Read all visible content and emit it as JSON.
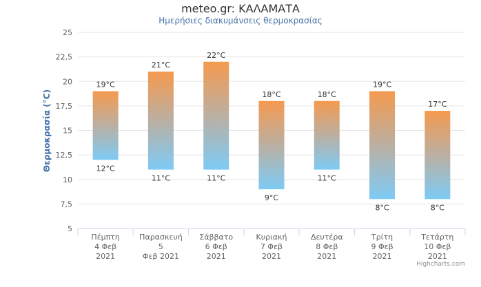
{
  "chart_data": {
    "type": "columnrange",
    "title": "meteo.gr: ΚΑΛΑΜΑΤΑ",
    "subtitle": "Ημερήσιες διακυμάνσεις θερμοκρασίας",
    "ylabel": "Θερμοκρασία (°C)",
    "xlabel": "",
    "ylim": [
      5,
      25
    ],
    "yticks": [
      5,
      7.5,
      10,
      12.5,
      15,
      17.5,
      20,
      22.5,
      25
    ],
    "ytick_labels": [
      "5",
      "7,5",
      "10",
      "12,5",
      "15",
      "17,5",
      "20",
      "22,5",
      "25"
    ],
    "grid": true,
    "legend": "none",
    "categories": [
      [
        "Πέμπτη",
        "4 Φεβ",
        "2021"
      ],
      [
        "Παρασκευή",
        "5",
        "Φεβ 2021"
      ],
      [
        "Σάββατο",
        "6 Φεβ",
        "2021"
      ],
      [
        "Κυριακή",
        "7 Φεβ",
        "2021"
      ],
      [
        "Δευτέρα",
        "8 Φεβ",
        "2021"
      ],
      [
        "Τρίτη",
        "9 Φεβ",
        "2021"
      ],
      [
        "Τετάρτη",
        "10 Φεβ",
        "2021"
      ]
    ],
    "low": [
      12,
      11,
      11,
      9,
      11,
      8,
      8
    ],
    "high": [
      19,
      21,
      22,
      18,
      18,
      19,
      17
    ],
    "low_labels": [
      "12°C",
      "11°C",
      "11°C",
      "9°C",
      "11°C",
      "8°C",
      "8°C"
    ],
    "high_labels": [
      "19°C",
      "21°C",
      "22°C",
      "18°C",
      "18°C",
      "19°C",
      "17°C"
    ],
    "colors": {
      "top": "#F59A4F",
      "bottom": "#7ECBF5",
      "grid": "#e6e6e6",
      "axis": "#ccd6eb"
    }
  },
  "credits": "Highcharts.com"
}
